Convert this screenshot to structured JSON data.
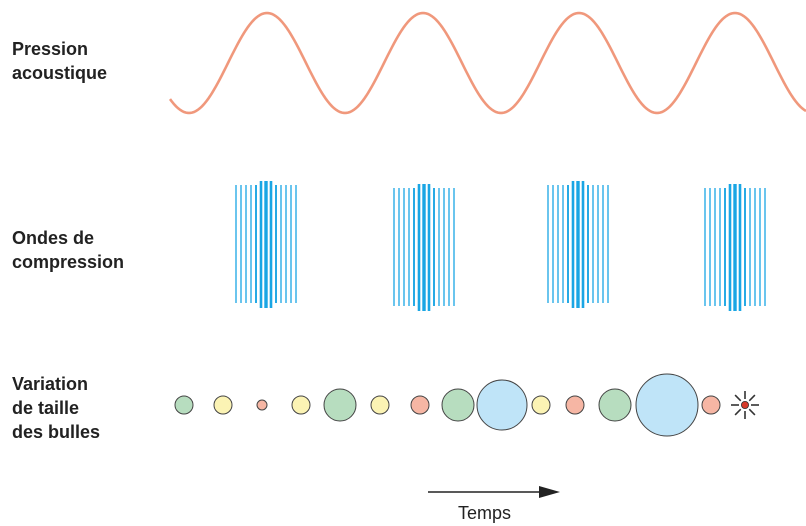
{
  "labels": {
    "pressure": [
      "Pression",
      "acoustique"
    ],
    "compression": [
      "Ondes de",
      "compression"
    ],
    "bubbles": [
      "Variation",
      "de taille",
      "des bulles"
    ]
  },
  "time_axis": {
    "label": "Temps"
  },
  "colors": {
    "wave": "#f0987c",
    "compression": "#1aa6e4",
    "bubble_outline": "#444444",
    "bubble_green": "#b7ddbf",
    "bubble_yellow": "#fbf3b4",
    "bubble_pink": "#f6b6a4",
    "bubble_blue": "#bfe4f8",
    "collapse": "#d63a2a",
    "text": "#222222"
  },
  "pressure_wave": {
    "cycles_shown": 4
  },
  "compression_groups": {
    "count": 4
  },
  "bubbles": [
    {
      "size": "small",
      "color": "green"
    },
    {
      "size": "small",
      "color": "yellow"
    },
    {
      "size": "tiny",
      "color": "pink"
    },
    {
      "size": "small",
      "color": "yellow"
    },
    {
      "size": "medium",
      "color": "green"
    },
    {
      "size": "small",
      "color": "yellow"
    },
    {
      "size": "small",
      "color": "pink"
    },
    {
      "size": "medium",
      "color": "green"
    },
    {
      "size": "large",
      "color": "blue"
    },
    {
      "size": "small",
      "color": "yellow"
    },
    {
      "size": "small",
      "color": "pink"
    },
    {
      "size": "medium",
      "color": "green"
    },
    {
      "size": "xlarge",
      "color": "blue"
    },
    {
      "size": "small",
      "color": "pink"
    },
    {
      "size": "collapse",
      "color": "red"
    }
  ]
}
